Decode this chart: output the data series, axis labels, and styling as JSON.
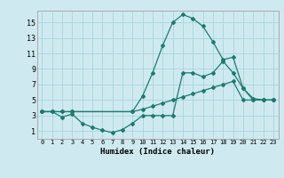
{
  "xlabel": "Humidex (Indice chaleur)",
  "background_color": "#ceeaf0",
  "grid_color": "#aad4dc",
  "line_color": "#1e7a70",
  "xlim": [
    -0.5,
    23.5
  ],
  "ylim": [
    0,
    16.5
  ],
  "xticks": [
    0,
    1,
    2,
    3,
    4,
    5,
    6,
    7,
    8,
    9,
    10,
    11,
    12,
    13,
    14,
    15,
    16,
    17,
    18,
    19,
    20,
    21,
    22,
    23
  ],
  "yticks": [
    1,
    3,
    5,
    7,
    9,
    11,
    13,
    15
  ],
  "line1_x": [
    0,
    1,
    2,
    3,
    9,
    10,
    11,
    12,
    13,
    14,
    15,
    16,
    17,
    18,
    19,
    20,
    21,
    22,
    23
  ],
  "line1_y": [
    3.5,
    3.5,
    3.5,
    3.5,
    3.5,
    3.8,
    4.2,
    4.6,
    5.0,
    5.4,
    5.8,
    6.2,
    6.6,
    7.0,
    7.4,
    5.0,
    5.0,
    5.0,
    5.0
  ],
  "line2_x": [
    0,
    1,
    2,
    3,
    4,
    5,
    6,
    7,
    8,
    9,
    10,
    11,
    12,
    13,
    14,
    15,
    16,
    17,
    18,
    19,
    20,
    21,
    22,
    23
  ],
  "line2_y": [
    3.5,
    3.5,
    2.8,
    3.2,
    2.0,
    1.5,
    1.1,
    0.8,
    1.2,
    2.0,
    3.0,
    3.0,
    3.0,
    3.0,
    8.5,
    8.5,
    8.0,
    8.5,
    10.0,
    8.5,
    6.5,
    5.0,
    5.0,
    5.0
  ],
  "line3_x": [
    0,
    1,
    2,
    3,
    9,
    10,
    11,
    12,
    13,
    14,
    15,
    16,
    17,
    18,
    19,
    20,
    21,
    22,
    23
  ],
  "line3_y": [
    3.5,
    3.5,
    3.5,
    3.5,
    3.5,
    5.5,
    8.5,
    12.0,
    15.0,
    16.0,
    15.5,
    14.5,
    12.5,
    10.2,
    10.5,
    6.5,
    5.2,
    5.0,
    5.0
  ]
}
